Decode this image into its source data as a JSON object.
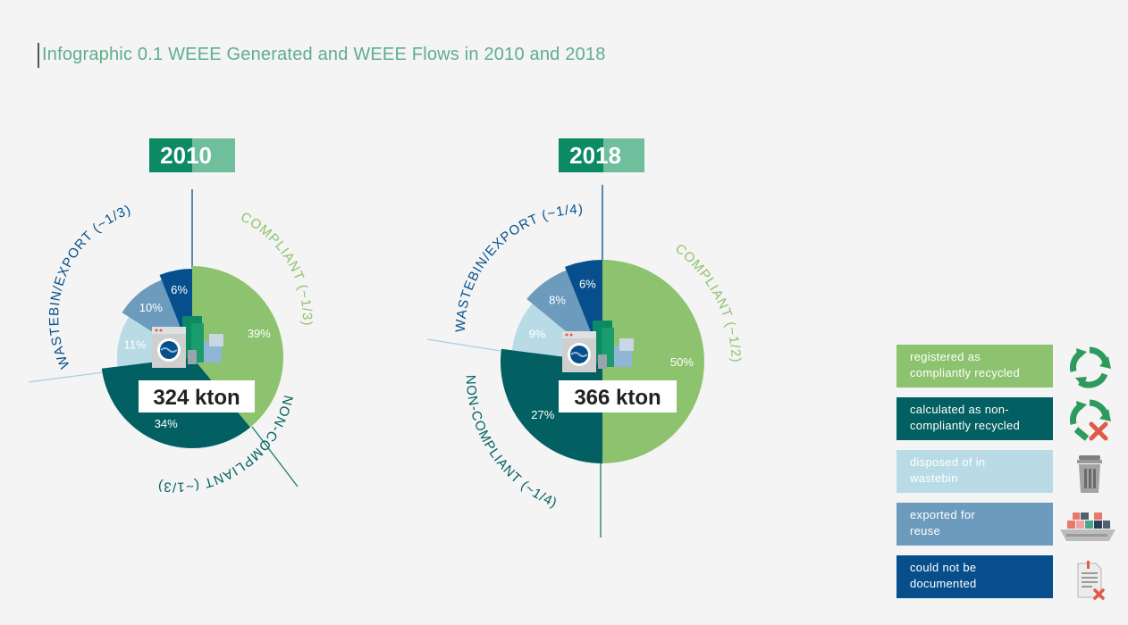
{
  "title": "Infographic 0.1 WEEE Generated and WEEE Flows in 2010 and 2018",
  "colors": {
    "compliant": "#8dc26f",
    "non_compliant": "#025f62",
    "wastebin": "#b8dbe6",
    "export": "#6d9bbd",
    "undocumented": "#064f8c",
    "year_dark": "#0c8a63",
    "year_light": "#6fbe9c"
  },
  "legend": [
    {
      "label_1": "registered as",
      "label_2": "compliantly recycled",
      "color": "#8dc26f",
      "icon": "recycle-icon"
    },
    {
      "label_1": "calculated as non-",
      "label_2": "compliantly recycled",
      "color": "#025f62",
      "icon": "recycle-cross-icon"
    },
    {
      "label_1": "disposed of in",
      "label_2": "wastebin",
      "color": "#b8dbe6",
      "icon": "trash-bin-icon"
    },
    {
      "label_1": "exported for",
      "label_2": "reuse",
      "color": "#6d9bbd",
      "icon": "cargo-ship-icon"
    },
    {
      "label_1": "could not be",
      "label_2": "documented",
      "color": "#064f8c",
      "icon": "document-cross-icon"
    }
  ],
  "chart_data": [
    {
      "type": "pie",
      "title": "2010",
      "total_label": "324 kton",
      "slices": [
        {
          "category": "registered as compliantly recycled",
          "value": 39,
          "label": "39%"
        },
        {
          "category": "calculated as non-compliantly recycled",
          "value": 34,
          "label": "34%"
        },
        {
          "category": "disposed of in wastebin",
          "value": 11,
          "label": "11%"
        },
        {
          "category": "exported for reuse",
          "value": 10,
          "label": "10%"
        },
        {
          "category": "could not be documented",
          "value": 6,
          "label": "6%"
        }
      ],
      "group_labels": {
        "compliant": "COMPLIANT (~1/3)",
        "non_compliant": "NON-COMPLIANT (~1/3)",
        "wastebin_export": "WASTEBIN/EXPORT (~1/3)"
      }
    },
    {
      "type": "pie",
      "title": "2018",
      "total_label": "366 kton",
      "slices": [
        {
          "category": "registered as compliantly recycled",
          "value": 50,
          "label": "50%"
        },
        {
          "category": "calculated as non-compliantly recycled",
          "value": 27,
          "label": "27%"
        },
        {
          "category": "disposed of in wastebin",
          "value": 9,
          "label": "9%"
        },
        {
          "category": "exported for reuse",
          "value": 8,
          "label": "8%"
        },
        {
          "category": "could not be documented",
          "value": 6,
          "label": "6%"
        }
      ],
      "group_labels": {
        "compliant": "COMPLIANT (~1/2)",
        "non_compliant": "NON-COMPLIANT (~1/4)",
        "wastebin_export": "WASTEBIN/EXPORT (~1/4)"
      }
    }
  ]
}
